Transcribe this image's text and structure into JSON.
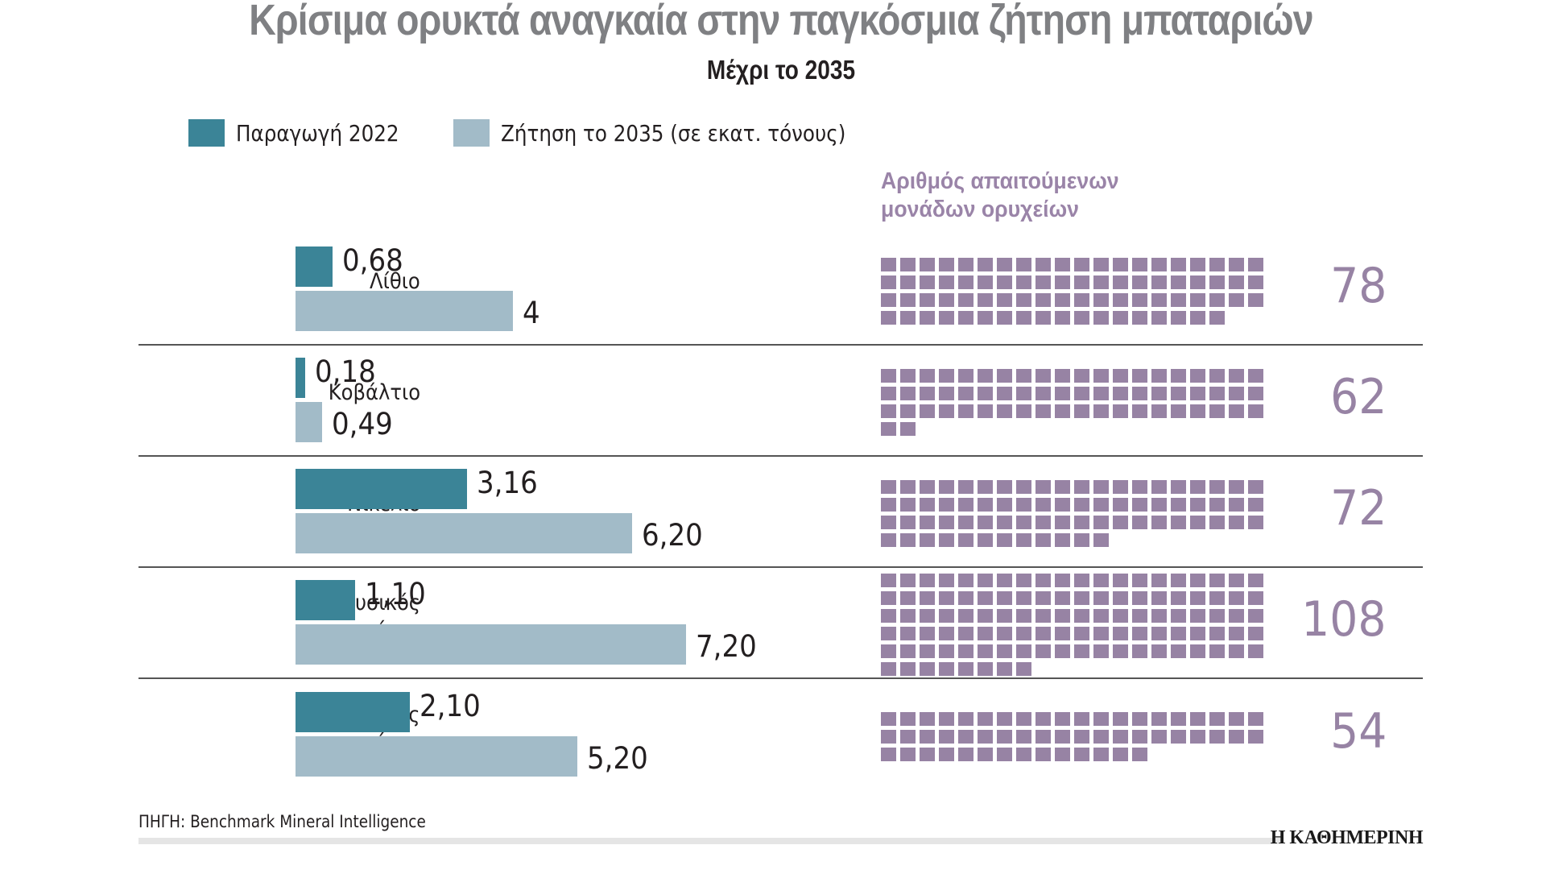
{
  "header": {
    "title": "Κρίσιμα ορυκτά αναγκαία στην παγκόσμια ζήτηση μπαταριών",
    "subtitle": "Μέχρι το 2035"
  },
  "legend": {
    "production_label": "Παραγωγή 2022",
    "demand_label": "Ζήτηση το 2035 (σε εκατ. τόνους)",
    "production_color": "#3b8497",
    "demand_color": "#a2bbc8"
  },
  "mines_header": {
    "line1": "Αριθμός απαιτούμενων",
    "line2": "μονάδων ορυχείων",
    "color": "#9783a4"
  },
  "chart_data": {
    "type": "bar",
    "orientation": "horizontal",
    "title": "Κρίσιμα ορυκτά αναγκαία στην παγκόσμια ζήτηση μπαταριών",
    "subtitle": "Μέχρι το 2035",
    "unit": "εκατ. τόνοι",
    "categories": [
      "Λίθιο",
      "Κοβάλτιο",
      "Νικέλιο",
      "Φυσικός γραφίτης",
      "Συνθετικός γραφίτης"
    ],
    "category_lines": [
      [
        "Λίθιο"
      ],
      [
        "Κοβάλτιο"
      ],
      [
        "Νικέλιο"
      ],
      [
        "Φυσικός",
        "γραφίτης"
      ],
      [
        "Συνθετικός",
        "γραφίτης"
      ]
    ],
    "series": [
      {
        "name": "Παραγωγή 2022",
        "values": [
          0.68,
          0.18,
          3.16,
          1.1,
          2.1
        ],
        "labels": [
          "0,68",
          "0,18",
          "3,16",
          "1,10",
          "2,10"
        ]
      },
      {
        "name": "Ζήτηση το 2035 (σε εκατ. τόνους)",
        "values": [
          4,
          0.49,
          6.2,
          7.2,
          5.2
        ],
        "labels": [
          "4",
          "0,49",
          "6,20",
          "7,20",
          "5,20"
        ]
      }
    ],
    "mines_required": {
      "title": "Αριθμός απαιτούμενων μονάδων ορυχείων",
      "values": [
        78,
        62,
        72,
        108,
        54
      ],
      "icons_per_row": 20
    },
    "xlim": [
      0,
      7.2
    ],
    "grid": false,
    "legend_position": "top-left"
  },
  "footer": {
    "source": "ΠΗΓΗ: Benchmark Mineral Intelligence",
    "brand": "Η ΚΑΘΗΜΕΡΙΝΗ"
  }
}
